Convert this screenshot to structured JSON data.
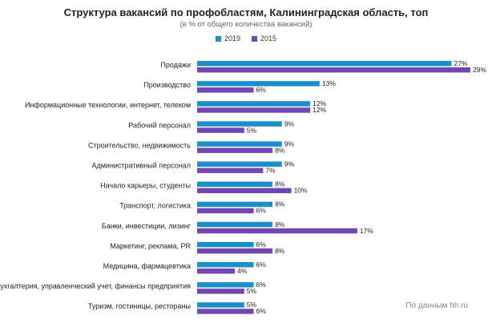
{
  "chart_data": {
    "type": "bar",
    "orientation": "horizontal",
    "title": "Структура вакансий по профобластям, Калининградская область, топ",
    "subtitle": "(в % от общего количества вакансий)",
    "categories": [
      "Продажи",
      "Производство",
      "Информационные технологии, интернет, телеком",
      "Рабочий персонал",
      "Строительство, недвижимость",
      "Административный персонал",
      "Начало карьеры, студенты",
      "Транспорт, логистика",
      "Банки, инвестиции, лизинг",
      "Маркетинг, реклама, PR",
      "Медицина, фармацевтика",
      "Бухгалтерия, управленческий учет, финансы предприятия",
      "Туризм, гостиницы, рестораны"
    ],
    "series": [
      {
        "name": "2019",
        "color": "#1a8fc9",
        "values": [
          27,
          13,
          12,
          9,
          9,
          9,
          8,
          8,
          8,
          6,
          6,
          6,
          5
        ],
        "labels": [
          "27%",
          "13%",
          "12%",
          "9%",
          "9%",
          "9%",
          "8%",
          "8%",
          "8%",
          "6%",
          "6%",
          "6%",
          "5%"
        ]
      },
      {
        "name": "2015",
        "color": "#7047b5",
        "values": [
          29,
          6,
          12,
          5,
          8,
          7,
          10,
          6,
          17,
          8,
          4,
          5,
          6
        ],
        "labels": [
          "29%",
          "6%",
          "12%",
          "5%",
          "8%",
          "7%",
          "10%",
          "6%",
          "17%",
          "8%",
          "4%",
          "5%",
          "6%"
        ]
      }
    ],
    "xlim": [
      0,
      29
    ],
    "unit": "%",
    "legend_position": "top-center",
    "grid": false
  },
  "source_note": "По данным hh.ru"
}
